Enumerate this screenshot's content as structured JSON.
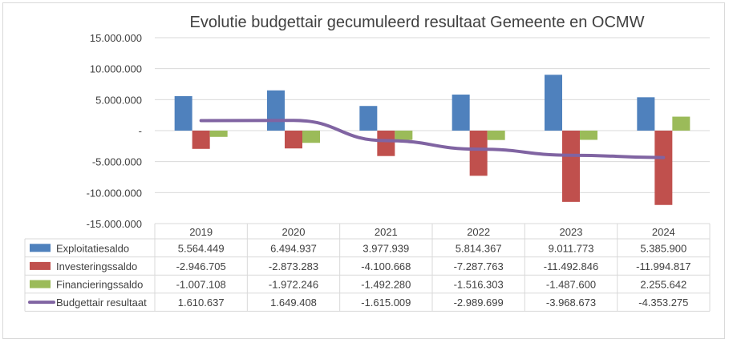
{
  "chart_data": {
    "type": "bar",
    "title": "Evolutie budgettair gecumuleerd resultaat Gemeente en OCMW",
    "xlabel": "",
    "ylabel": "",
    "categories": [
      "2019",
      "2020",
      "2021",
      "2022",
      "2023",
      "2024"
    ],
    "ylim": [
      -15000000,
      15000000
    ],
    "yticks": [
      15000000,
      10000000,
      5000000,
      0,
      -5000000,
      -10000000,
      -15000000
    ],
    "ytick_labels": [
      "15.000.000",
      "10.000.000",
      "5.000.000",
      "-",
      "-5.000.000",
      "-10.000.000",
      "-15.000.000"
    ],
    "grid": true,
    "legend_placement": "data-table",
    "series": [
      {
        "name": "Exploitatiesaldo",
        "type": "bar",
        "color": "#4f81bd",
        "values": [
          5564449,
          6494937,
          3977939,
          5814367,
          9011773,
          5385900
        ],
        "labels": [
          "5.564.449",
          "6.494.937",
          "3.977.939",
          "5.814.367",
          "9.011.773",
          "5.385.900"
        ]
      },
      {
        "name": "Investeringssaldo",
        "type": "bar",
        "color": "#c0504d",
        "values": [
          -2946705,
          -2873283,
          -4100668,
          -7287763,
          -11492846,
          -11994817
        ],
        "labels": [
          "-2.946.705",
          "-2.873.283",
          "-4.100.668",
          "-7.287.763",
          "-11.492.846",
          "-11.994.817"
        ]
      },
      {
        "name": "Financieringssaldo",
        "type": "bar",
        "color": "#9bbb59",
        "values": [
          -1007108,
          -1972246,
          -1492280,
          -1516303,
          -1487600,
          2255642
        ],
        "labels": [
          "-1.007.108",
          "-1.972.246",
          "-1.492.280",
          "-1.516.303",
          "-1.487.600",
          "2.255.642"
        ]
      },
      {
        "name": "Budgettair resultaat",
        "type": "line",
        "color": "#8064a2",
        "values": [
          1610637,
          1649408,
          -1615009,
          -2989699,
          -3968673,
          -4353275
        ],
        "labels": [
          "1.610.637",
          "1.649.408",
          "-1.615.009",
          "-2.989.699",
          "-3.968.673",
          "-4.353.275"
        ]
      }
    ]
  }
}
